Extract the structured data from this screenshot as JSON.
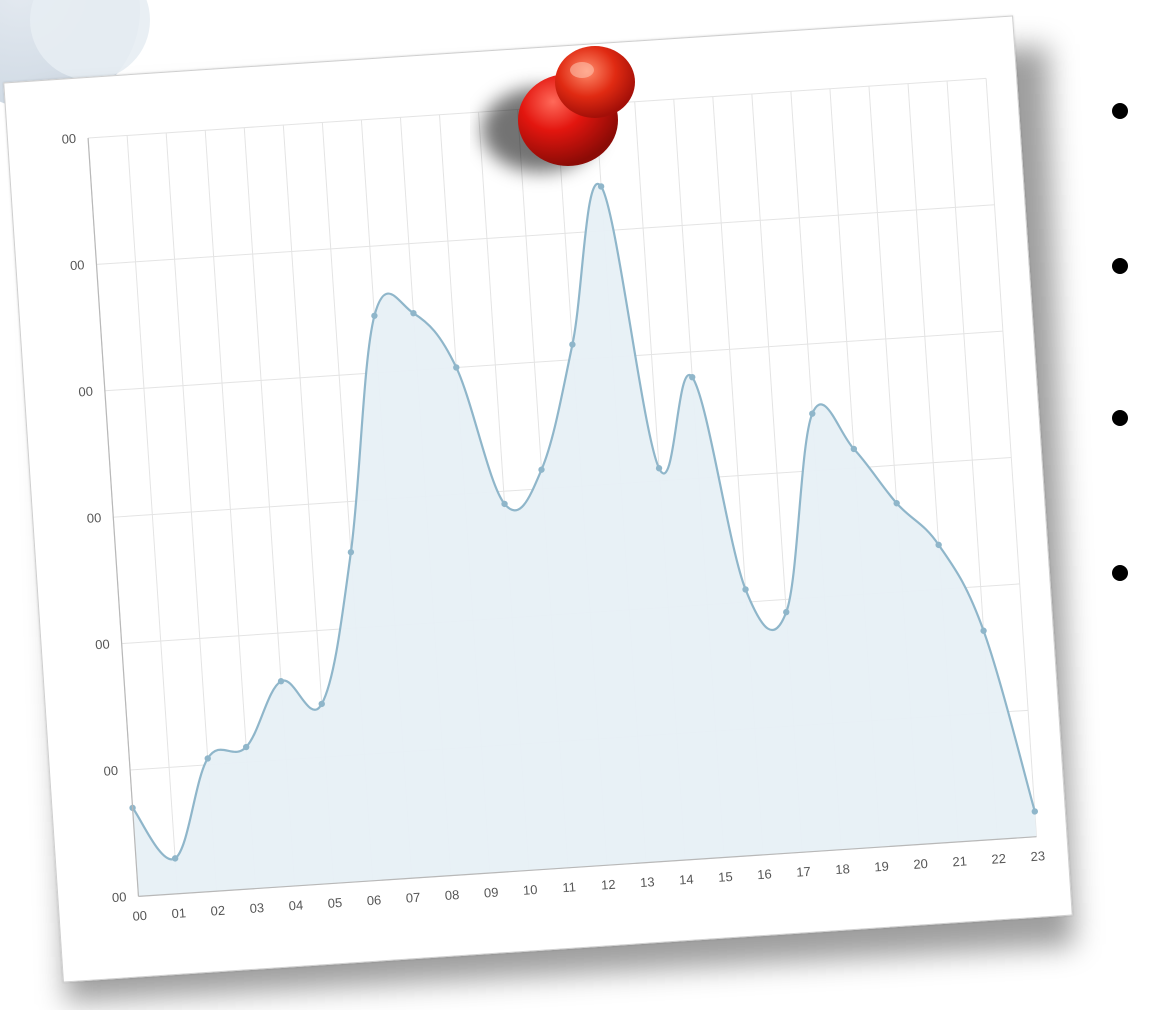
{
  "chart_data": {
    "type": "area",
    "x": [
      "00",
      "01",
      "02",
      "03",
      "04",
      "05",
      "06",
      "07",
      "08",
      "09",
      "10",
      "11",
      "12",
      "13",
      "14",
      "15",
      "16",
      "17",
      "18",
      "19",
      "20",
      "21",
      "22",
      "23"
    ],
    "series": [
      {
        "values": [
          70,
          28,
          105,
          112,
          162,
          142,
          260,
          445,
          445,
          400,
          290,
          315,
          412,
          535,
          310,
          380,
          210,
          190,
          345,
          315,
          270,
          235,
          165,
          20
        ]
      }
    ],
    "ylabels": [
      "00",
      "00",
      "00",
      "00",
      "00",
      "00",
      "00"
    ],
    "ylim": [
      0,
      600
    ],
    "grid": true,
    "colors": {
      "line": "#8fb6ca",
      "fill": "#e7f0f5",
      "grid": "#e4e4e4",
      "pin": "#d9140e"
    }
  },
  "decor": {
    "pin_icon": "push-pin-icon",
    "bullet_count": 4
  }
}
